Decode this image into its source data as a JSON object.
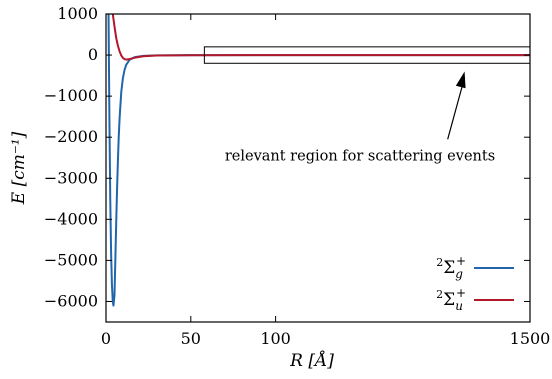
{
  "chart_data": {
    "type": "line",
    "title": "",
    "xlabel": "R [Å]",
    "ylabel": "E [cm⁻¹]",
    "ylim": [
      -6500,
      1000
    ],
    "x_axis_note": "x axis is piecewise: 0–100 Å then compressed 100–1500 Å",
    "x_segments": [
      {
        "range": [
          0,
          100
        ],
        "fraction": 0.4
      },
      {
        "range": [
          100,
          1500
        ],
        "fraction": 0.6
      }
    ],
    "x_ticks": [
      {
        "value": 0,
        "label": "0"
      },
      {
        "value": 50,
        "label": "50"
      },
      {
        "value": 100,
        "label": "100"
      },
      {
        "value": 1500,
        "label": "1500"
      }
    ],
    "y_ticks": [
      {
        "value": 1000,
        "label": "1000"
      },
      {
        "value": 0,
        "label": "0"
      },
      {
        "value": -1000,
        "label": "−1000"
      },
      {
        "value": -2000,
        "label": "−2000"
      },
      {
        "value": -3000,
        "label": "−3000"
      },
      {
        "value": -4000,
        "label": "−4000"
      },
      {
        "value": -5000,
        "label": "−5000"
      },
      {
        "value": -6000,
        "label": "−6000"
      }
    ],
    "series": [
      {
        "name_sup": "2",
        "name_base": "Σ",
        "name_sub": "g",
        "name_sup2": "+",
        "color": "#2166ac",
        "points": [
          [
            1.5,
            1000
          ],
          [
            2.0,
            -1500
          ],
          [
            2.5,
            -3500
          ],
          [
            3.0,
            -4800
          ],
          [
            3.5,
            -5600
          ],
          [
            4.0,
            -6000
          ],
          [
            4.4,
            -6100
          ],
          [
            5.0,
            -5850
          ],
          [
            5.5,
            -5000
          ],
          [
            6.0,
            -4100
          ],
          [
            6.5,
            -3300
          ],
          [
            7.0,
            -2600
          ],
          [
            7.5,
            -2000
          ],
          [
            8.0,
            -1550
          ],
          [
            9.0,
            -900
          ],
          [
            10.0,
            -550
          ],
          [
            11.0,
            -350
          ],
          [
            12.0,
            -230
          ],
          [
            14.0,
            -110
          ],
          [
            17.0,
            -50
          ],
          [
            22.0,
            -20
          ],
          [
            30.0,
            -8
          ],
          [
            50.0,
            -2
          ],
          [
            100.0,
            0
          ],
          [
            1500,
            0
          ]
        ]
      },
      {
        "name_sup": "2",
        "name_base": "Σ",
        "name_sub": "u",
        "name_sup2": "+",
        "color": "#b2182b",
        "points": [
          [
            4.0,
            1000
          ],
          [
            5.0,
            700
          ],
          [
            6.0,
            420
          ],
          [
            7.0,
            230
          ],
          [
            8.0,
            90
          ],
          [
            9.0,
            -10
          ],
          [
            10.0,
            -70
          ],
          [
            11.0,
            -100
          ],
          [
            12.0,
            -110
          ],
          [
            13.5,
            -100
          ],
          [
            15.0,
            -85
          ],
          [
            18.0,
            -55
          ],
          [
            22.0,
            -30
          ],
          [
            30.0,
            -12
          ],
          [
            50.0,
            -3
          ],
          [
            100.0,
            0
          ],
          [
            1500,
            0
          ]
        ]
      }
    ],
    "annotation": {
      "text": "relevant region for scattering events",
      "box": {
        "x0": 58,
        "x1": 1500,
        "y0": -200,
        "y1": 200
      },
      "arrow_tail": {
        "x": 1047,
        "y": -2050
      },
      "arrow_head": {
        "x": 1140,
        "y": -400
      }
    },
    "legend_position": "bottom-right",
    "grid": false
  }
}
